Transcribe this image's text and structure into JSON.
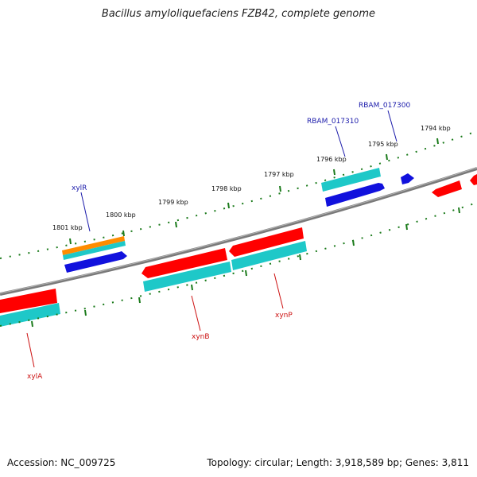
{
  "title": "Bacillus amyloliquefaciens FZB42, complete genome",
  "footer": {
    "accession": "Accession: NC_009725",
    "summary": "Topology: circular; Length: 3,918,589 bp; Genes: 3,811"
  },
  "colors": {
    "backbone": "#7a7a7a",
    "tick": "#1a7a1a",
    "cds_fwd": "#ff0000",
    "cds_rev": "#1111dd",
    "gene_cyan": "#1ec8c8",
    "gene_orange": "#ff8c00",
    "label_rev": "#1a1aaa",
    "label_fwd": "#cc1111"
  },
  "ticks_upper": [
    "1801 kbp",
    "1800 kbp",
    "1799 kbp",
    "1798 kbp",
    "1797 kbp",
    "1796 kbp",
    "1795 kbp",
    "1794 kbp"
  ],
  "gene_labels_upper": [
    "xylR",
    "RBAM_017310",
    "RBAM_017300"
  ],
  "gene_labels_lower": [
    "xylA",
    "xynB",
    "xynP"
  ]
}
